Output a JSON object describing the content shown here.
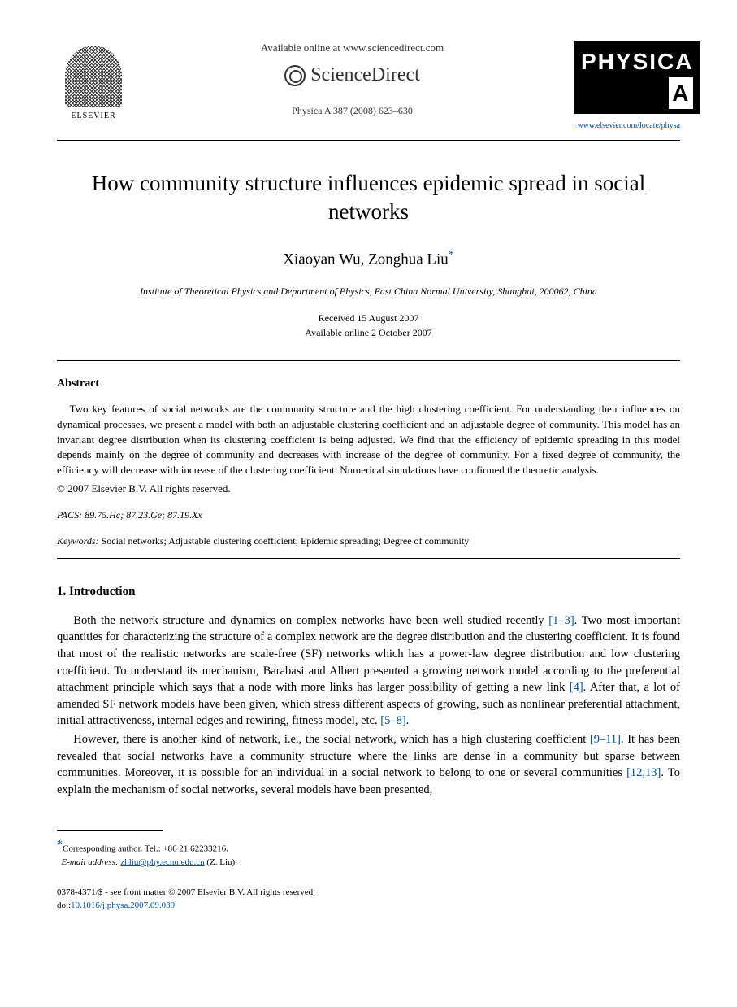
{
  "header": {
    "publisher": "ELSEVIER",
    "available_text": "Available online at www.sciencedirect.com",
    "sciencedirect": "ScienceDirect",
    "journal_ref": "Physica A 387 (2008) 623–630",
    "journal_logo": "PHYSICA",
    "journal_letter": "A",
    "journal_url": "www.elsevier.com/locate/physa"
  },
  "article": {
    "title": "How community structure influences epidemic spread in social networks",
    "authors": "Xiaoyan Wu, Zonghua Liu",
    "affiliation": "Institute of Theoretical Physics and Department of Physics, East China Normal University, Shanghai, 200062, China",
    "received": "Received 15 August 2007",
    "online": "Available online 2 October 2007"
  },
  "abstract": {
    "heading": "Abstract",
    "text": "Two key features of social networks are the community structure and the high clustering coefficient. For understanding their influences on dynamical processes, we present a model with both an adjustable clustering coefficient and an adjustable degree of community. This model has an invariant degree distribution when its clustering coefficient is being adjusted. We find that the efficiency of epidemic spreading in this model depends mainly on the degree of community and decreases with increase of the degree of community. For a fixed degree of community, the efficiency will decrease with increase of the clustering coefficient. Numerical simulations have confirmed the theoretic analysis.",
    "copyright": "© 2007 Elsevier B.V. All rights reserved.",
    "pacs_label": "PACS:",
    "pacs": "89.75.Hc; 87.23.Ge; 87.19.Xx",
    "keywords_label": "Keywords:",
    "keywords": "Social networks; Adjustable clustering coefficient; Epidemic spreading; Degree of community"
  },
  "section1": {
    "heading": "1.  Introduction",
    "p1_a": "Both the network structure and dynamics on complex networks have been well studied recently ",
    "p1_ref1": "[1–3]",
    "p1_b": ". Two most important quantities for characterizing the structure of a complex network are the degree distribution and the clustering coefficient. It is found that most of the realistic networks are scale-free (SF) networks which has a power-law degree distribution and low clustering coefficient. To understand its mechanism, Barabasi and Albert presented a growing network model according to the preferential attachment principle which says that a node with more links has larger possibility of getting a new link ",
    "p1_ref2": "[4]",
    "p1_c": ". After that, a lot of amended SF network models have been given, which stress different aspects of growing, such as nonlinear preferential attachment, initial attractiveness, internal edges and rewiring, fitness model, etc. ",
    "p1_ref3": "[5–8]",
    "p1_d": ".",
    "p2_a": "However, there is another kind of network, i.e., the social network, which has a high clustering coefficient ",
    "p2_ref1": "[9–11]",
    "p2_b": ". It has been revealed that social networks have a community structure where the links are dense in a community but sparse between communities. Moreover, it is possible for an individual in a social network to belong to one or several communities ",
    "p2_ref2": "[12,13]",
    "p2_c": ". To explain the mechanism of social networks, several models have been presented,"
  },
  "footnote": {
    "corr_label": "Corresponding author. Tel.: +86 21 62233216.",
    "email_label": "E-mail address:",
    "email": "zhliu@phy.ecnu.edu.cn",
    "email_suffix": "(Z. Liu)."
  },
  "bottom": {
    "issn": "0378-4371/$ - see front matter © 2007 Elsevier B.V. All rights reserved.",
    "doi_label": "doi:",
    "doi": "10.1016/j.physa.2007.09.039"
  }
}
